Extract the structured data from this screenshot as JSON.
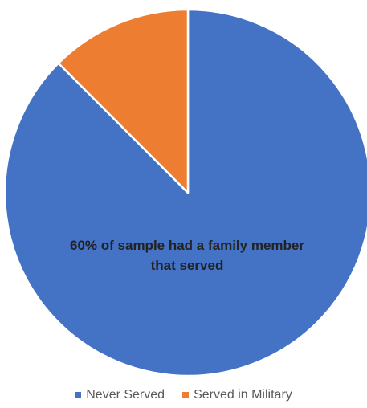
{
  "chart_data": {
    "type": "pie",
    "categories": [
      "Never Served",
      "Served in Military"
    ],
    "values": [
      87.5,
      12.5
    ],
    "colors": [
      "#4472C4",
      "#ED7D31"
    ],
    "start_angle_deg": 0,
    "direction": "clockwise",
    "annotation": "60% of sample had a family member that served",
    "legend_position": "bottom"
  }
}
